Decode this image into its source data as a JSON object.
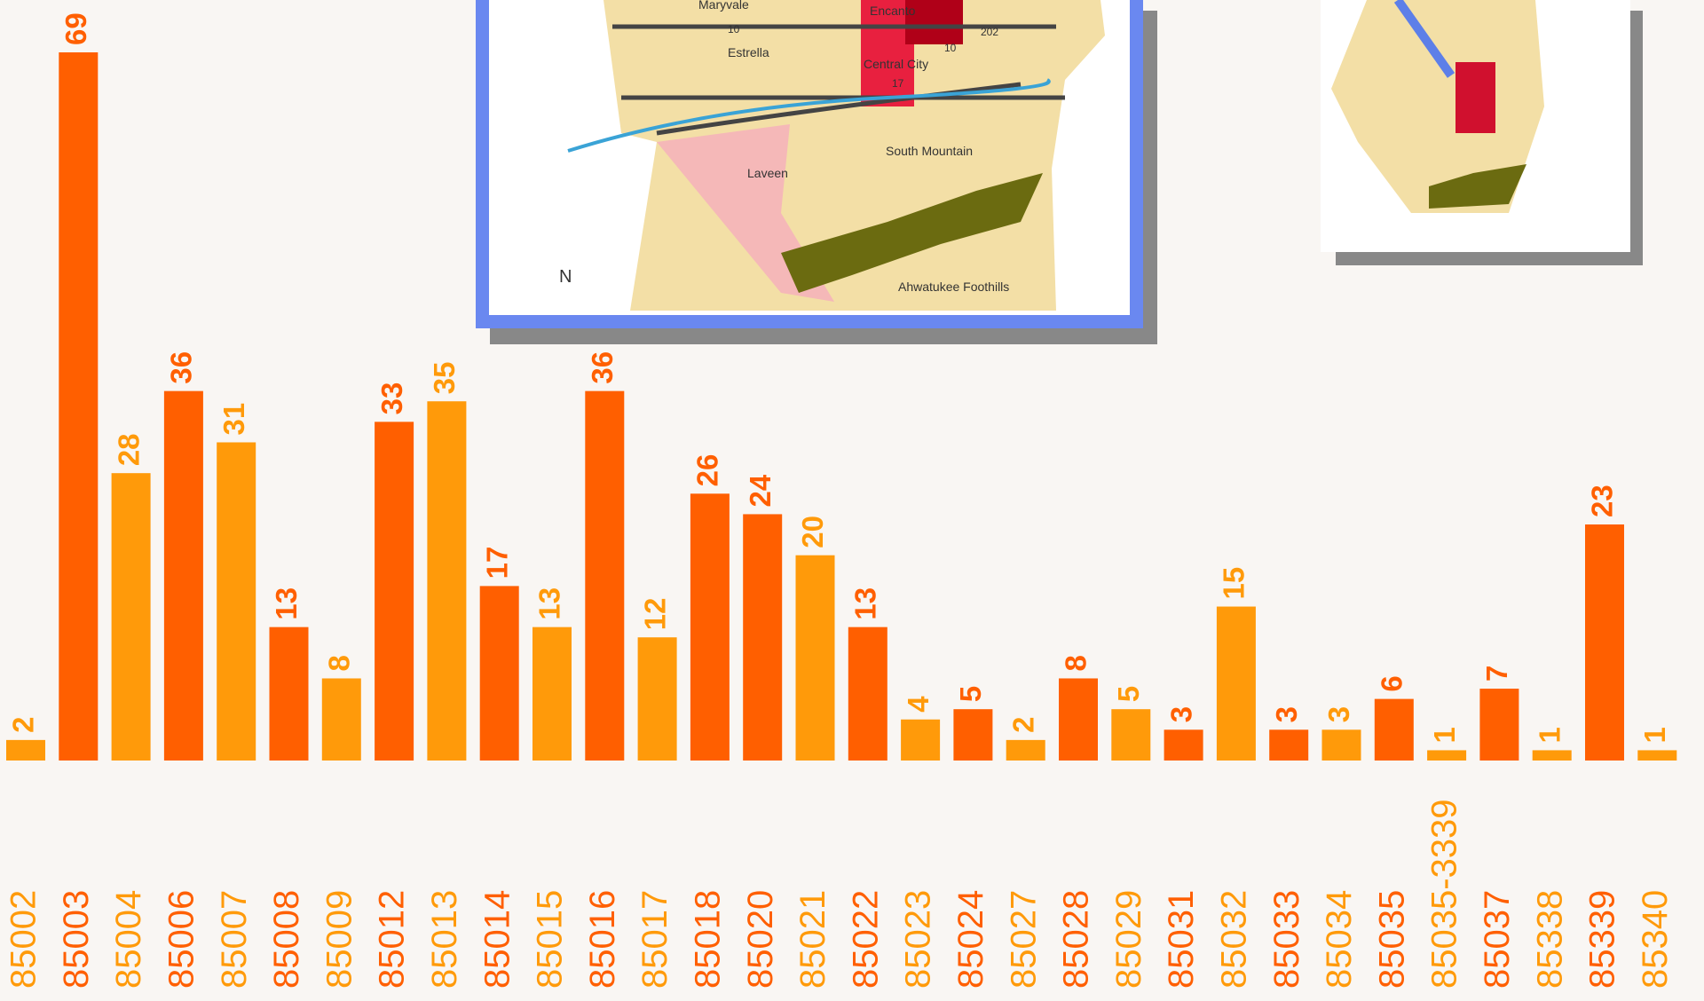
{
  "chart_data": {
    "type": "bar",
    "categories": [
      "85002",
      "85003",
      "85004",
      "85006",
      "85007",
      "85008",
      "85009",
      "85012",
      "85013",
      "85014",
      "85015",
      "85016",
      "85017",
      "85018",
      "85020",
      "85021",
      "85022",
      "85023",
      "85024",
      "85027",
      "85028",
      "85029",
      "85031",
      "85032",
      "85033",
      "85034",
      "85035",
      "85035-3339",
      "85037",
      "85338",
      "85339",
      "85340"
    ],
    "values": [
      2,
      69,
      28,
      36,
      31,
      13,
      8,
      33,
      35,
      17,
      13,
      36,
      12,
      26,
      24,
      20,
      13,
      4,
      5,
      2,
      8,
      5,
      3,
      15,
      3,
      3,
      6,
      1,
      7,
      1,
      23,
      1
    ],
    "colors": [
      "#ff9a0a",
      "#ff5f00",
      "#ff9a0a",
      "#ff5f00",
      "#ff9a0a",
      "#ff5f00",
      "#ff9a0a",
      "#ff5f00",
      "#ff9a0a",
      "#ff5f00",
      "#ff9a0a",
      "#ff5f00",
      "#ff9a0a",
      "#ff5f00",
      "#ff5f00",
      "#ff9a0a",
      "#ff5f00",
      "#ff9a0a",
      "#ff5f00",
      "#ff9a0a",
      "#ff5f00",
      "#ff9a0a",
      "#ff5f00",
      "#ff9a0a",
      "#ff5f00",
      "#ff9a0a",
      "#ff5f00",
      "#ff9a0a",
      "#ff5f00",
      "#ff9a0a",
      "#ff5f00",
      "#ff9a0a"
    ]
  },
  "map": {
    "labels": [
      "Maryvale",
      "Encanto",
      "Estrella",
      "Central City",
      "Laveen",
      "South Mountain",
      "Ahwatukee Foothills",
      "N",
      "10",
      "202",
      "10",
      "17"
    ]
  }
}
